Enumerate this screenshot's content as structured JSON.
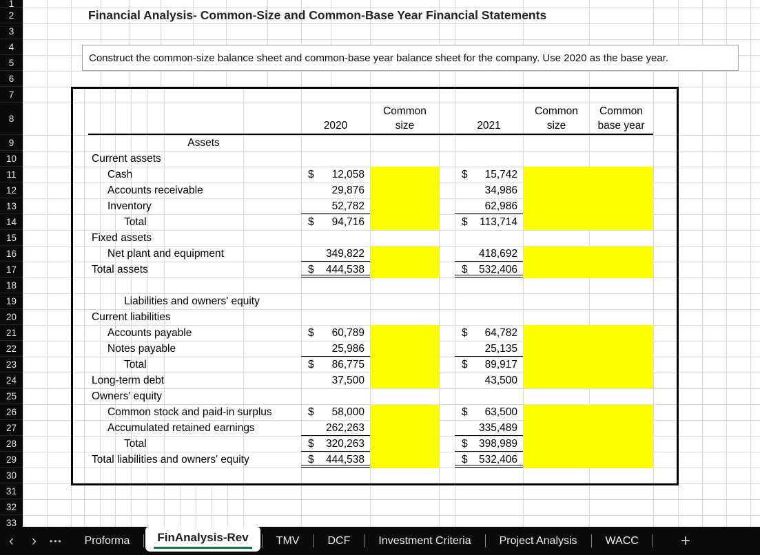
{
  "sheet": {
    "title": "Financial Analysis- Common-Size and Common-Base Year Financial Statements",
    "instruction": "Construct the common-size balance sheet and common-base year balance sheet for the company. Use 2020 as the base year.",
    "currency_symbol": "$",
    "highlight_color": "#FFFF00",
    "row_numbers": [
      1,
      2,
      3,
      4,
      5,
      6,
      7,
      8,
      9,
      10,
      11,
      12,
      13,
      14,
      15,
      16,
      17,
      18,
      19,
      20,
      21,
      22,
      23,
      24,
      25,
      26,
      27,
      28,
      29,
      30,
      31,
      32,
      33
    ]
  },
  "table": {
    "columns": [
      "2020",
      "Common size",
      "2021",
      "Common size",
      "Common base year"
    ],
    "rows": [
      {
        "r": 9,
        "label": "Assets",
        "align": "center"
      },
      {
        "r": 10,
        "label": "Current assets",
        "indent": 0
      },
      {
        "r": 11,
        "label": "Cash",
        "indent": 1,
        "v2020": "12,058",
        "d2020": true,
        "v2021": "15,742",
        "d2021": true,
        "hl": true
      },
      {
        "r": 12,
        "label": "Accounts receivable",
        "indent": 1,
        "v2020": "29,876",
        "v2021": "34,986",
        "hl": true
      },
      {
        "r": 13,
        "label": "Inventory",
        "indent": 1,
        "v2020": "52,782",
        "v2021": "62,986",
        "u": 1,
        "hl": true
      },
      {
        "r": 14,
        "label": "Total",
        "indent": 2,
        "v2020": "94,716",
        "d2020": true,
        "v2021": "113,714",
        "d2021": true,
        "hl": true
      },
      {
        "r": 15,
        "label": "Fixed assets",
        "indent": 0
      },
      {
        "r": 16,
        "label": "Net plant and equipment",
        "indent": 1,
        "v2020": "349,822",
        "v2021": "418,692",
        "u": 1,
        "hl": true
      },
      {
        "r": 17,
        "label": "Total assets",
        "indent": 0,
        "v2020": "444,538",
        "d2020": true,
        "v2021": "532,406",
        "d2021": true,
        "u": 2,
        "hl": true
      },
      {
        "r": 19,
        "label": "Liabilities and owners' equity",
        "indent": 2
      },
      {
        "r": 20,
        "label": "Current liabilities",
        "indent": 0
      },
      {
        "r": 21,
        "label": "Accounts payable",
        "indent": 1,
        "v2020": "60,789",
        "d2020": true,
        "v2021": "64,782",
        "d2021": true,
        "hl": true
      },
      {
        "r": 22,
        "label": "Notes payable",
        "indent": 1,
        "v2020": "25,986",
        "v2021": "25,135",
        "u": 1,
        "hl": true
      },
      {
        "r": 23,
        "label": "Total",
        "indent": 2,
        "v2020": "86,775",
        "d2020": true,
        "v2021": "89,917",
        "d2021": true,
        "hl": true
      },
      {
        "r": 24,
        "label": "Long-term debt",
        "indent": 0,
        "v2020": "37,500",
        "v2021": "43,500",
        "hl": true
      },
      {
        "r": 25,
        "label": "Owners' equity",
        "indent": 0
      },
      {
        "r": 26,
        "label": "Common stock and paid-in surplus",
        "indent": 1,
        "v2020": "58,000",
        "d2020": true,
        "v2021": "63,500",
        "d2021": true,
        "hl": true
      },
      {
        "r": 27,
        "label": "Accumulated retained earnings",
        "indent": 1,
        "v2020": "262,263",
        "v2021": "335,489",
        "u": 1,
        "hl": true
      },
      {
        "r": 28,
        "label": "Total",
        "indent": 2,
        "v2020": "320,263",
        "d2020": true,
        "v2021": "398,989",
        "d2021": true,
        "u": 1,
        "hl": true
      },
      {
        "r": 29,
        "label": "Total liabilities and owners' equity",
        "indent": 0,
        "v2020": "444,538",
        "d2020": true,
        "v2021": "532,406",
        "d2021": true,
        "u": 2,
        "hl": true
      }
    ]
  },
  "tabbar": {
    "nav": [
      "chevron-left",
      "chevron-right",
      "ellipsis"
    ],
    "tabs": [
      {
        "label": "Proforma",
        "active": false
      },
      {
        "label": "FinAnalysis-Rev",
        "active": true
      },
      {
        "label": "TMV",
        "active": false
      },
      {
        "label": "DCF",
        "active": false
      },
      {
        "label": "Investment Criteria",
        "active": false
      },
      {
        "label": "Project Analysis",
        "active": false
      },
      {
        "label": "WACC",
        "active": false
      }
    ],
    "add_label": "+",
    "active_underline_color": "#1E7145"
  }
}
